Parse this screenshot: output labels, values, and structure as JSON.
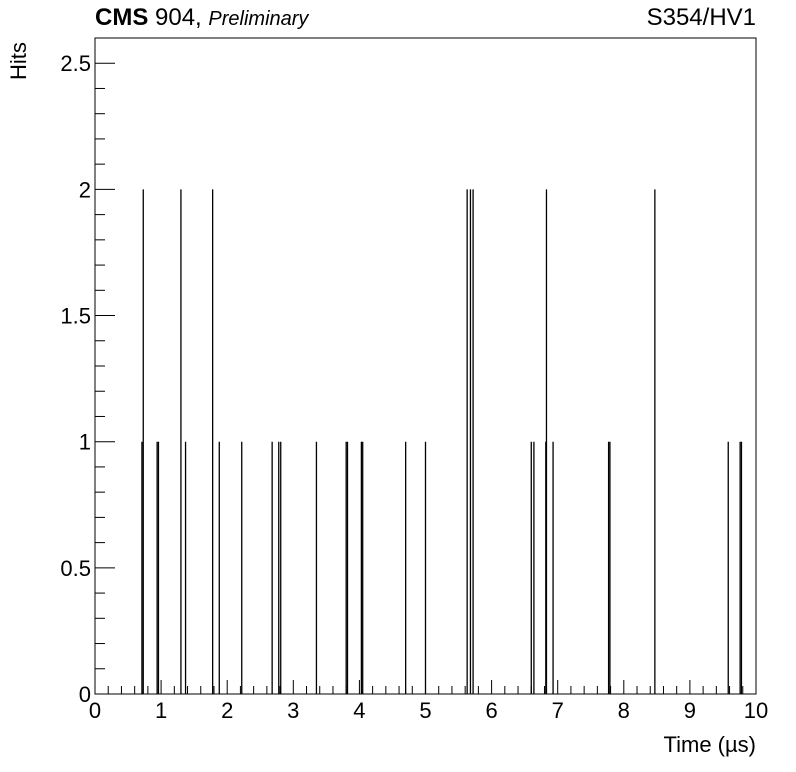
{
  "header": {
    "experiment": "CMS",
    "facility": "904,",
    "status": "Preliminary",
    "run_label": "S354/HV1"
  },
  "chart_data": {
    "type": "bar",
    "title": "",
    "xlabel": "Time (µs)",
    "ylabel": "Hits",
    "xlim": [
      0,
      10
    ],
    "ylim": [
      0,
      2.6
    ],
    "x_ticks": [
      "0",
      "1",
      "2",
      "3",
      "4",
      "5",
      "6",
      "7",
      "8",
      "9",
      "10"
    ],
    "y_ticks": [
      "0",
      "0.5",
      "1",
      "1.5",
      "2",
      "2.5"
    ],
    "grid": false,
    "legend": "none",
    "color": "#000000",
    "series": [
      {
        "x": [
          0.73,
          1.3,
          1.78,
          5.63,
          5.68,
          5.72,
          6.83,
          8.47,
          0.71,
          0.94,
          0.96,
          1.37,
          1.88,
          2.22,
          2.68,
          2.78,
          2.81,
          3.35,
          3.8,
          3.82,
          4.03,
          4.05,
          4.7,
          5.0,
          6.6,
          6.64,
          6.82,
          6.93,
          7.77,
          7.79,
          9.58,
          9.76,
          9.78
        ],
        "y": [
          2,
          2,
          2,
          2,
          2,
          2,
          2,
          2,
          1,
          1,
          1,
          1,
          1,
          1,
          1,
          1,
          1,
          1,
          1,
          1,
          1,
          1,
          1,
          1,
          1,
          1,
          1,
          1,
          1,
          1,
          1,
          1,
          1
        ]
      }
    ]
  }
}
